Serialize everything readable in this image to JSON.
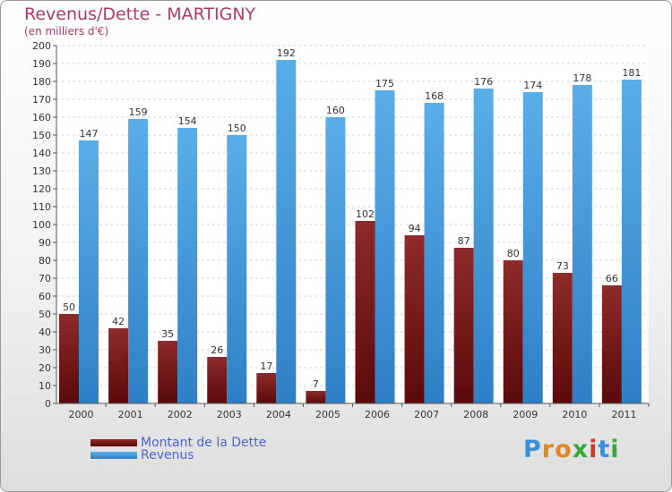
{
  "colors": {
    "dette": "#7a1c1c",
    "revenus": "#4a9fe0",
    "title": "#b0386b",
    "legend_text": "#4a66cc"
  },
  "logo_text": "Proxiti",
  "chart_data": {
    "type": "bar",
    "title": "Revenus/Dette - MARTIGNY",
    "subtitle": "(en milliers d'€)",
    "xlabel": "",
    "ylabel": "",
    "categories": [
      "2000",
      "2001",
      "2002",
      "2003",
      "2004",
      "2005",
      "2006",
      "2007",
      "2008",
      "2009",
      "2010",
      "2011"
    ],
    "series": [
      {
        "name": "Montant de la Dette",
        "values": [
          50,
          42,
          35,
          26,
          17,
          7,
          102,
          94,
          87,
          80,
          73,
          66
        ]
      },
      {
        "name": "Revenus",
        "values": [
          147,
          159,
          154,
          150,
          192,
          160,
          175,
          168,
          176,
          174,
          178,
          181
        ]
      }
    ],
    "ylim": [
      0,
      200
    ],
    "yticks": [
      0,
      10,
      20,
      30,
      40,
      50,
      60,
      70,
      80,
      90,
      100,
      110,
      120,
      130,
      140,
      150,
      160,
      170,
      180,
      190,
      200
    ],
    "grid": true,
    "legend": "bottom-left"
  }
}
